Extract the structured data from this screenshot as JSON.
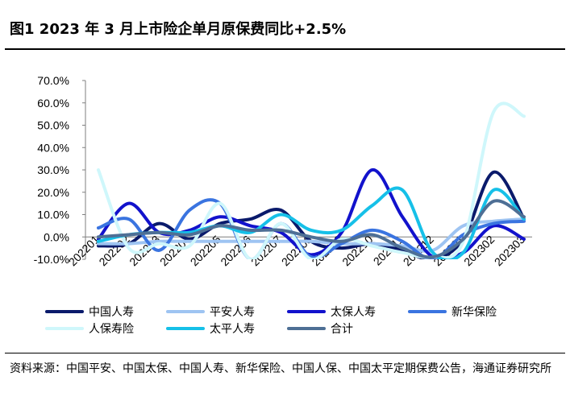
{
  "title": "图1   2023 年 3 月上市险企单月原保费同比+2.5%",
  "source": "资料来源：中国平安、中国太保、中国人寿、新华保险、中国人保、中国太平定期保费公告，海通证券研究所",
  "colors": {
    "中国人寿": "#0a1a6b",
    "平安人寿": "#9ec4f2",
    "太保人寿": "#1212cc",
    "新华保险": "#3a74e0",
    "人保寿险": "#cff7fb",
    "太平人寿": "#16c0e8",
    "合计": "#4e6f95"
  },
  "chart_data": {
    "type": "line",
    "categories": [
      "202201",
      "202202",
      "202203",
      "202204",
      "202205",
      "202206",
      "202207",
      "202208",
      "202209",
      "202210",
      "202211",
      "202212",
      "202301",
      "202302",
      "202303"
    ],
    "ylim": [
      -10,
      70
    ],
    "yticks": [
      "70.0%",
      "60.0%",
      "50.0%",
      "40.0%",
      "30.0%",
      "20.0%",
      "10.0%",
      "0.0%",
      "-10.0%"
    ],
    "ytick_values": [
      70,
      60,
      50,
      40,
      30,
      20,
      10,
      0,
      -10
    ],
    "series": [
      {
        "name": "中国人寿",
        "values": [
          -4,
          -3,
          6,
          -1,
          6,
          8,
          12,
          -2,
          -5,
          -3,
          -6,
          -10,
          -1,
          29,
          8
        ]
      },
      {
        "name": "平安人寿",
        "values": [
          -3,
          -3,
          -2,
          -2,
          -2,
          -2,
          -2,
          -2,
          -3,
          -3,
          -4,
          -6,
          5,
          7,
          8
        ]
      },
      {
        "name": "太保人寿",
        "values": [
          -1,
          15,
          2,
          3,
          9,
          5,
          2,
          -8,
          2,
          30,
          9,
          -9,
          -7,
          5,
          -1
        ]
      },
      {
        "name": "新华保险",
        "values": [
          4,
          8,
          -6,
          12,
          15,
          -10,
          6,
          -9,
          -3,
          3,
          -2,
          -10,
          1,
          6,
          7
        ]
      },
      {
        "name": "人保寿险",
        "values": [
          30,
          -5,
          -3,
          -4,
          15,
          -10,
          6,
          -10,
          -1,
          -4,
          -7,
          -9,
          -2,
          56,
          54
        ]
      },
      {
        "name": "太平人寿",
        "values": [
          -2,
          1,
          2,
          2,
          5,
          2,
          10,
          3,
          3,
          14,
          21,
          -7,
          -7,
          21,
          8
        ]
      },
      {
        "name": "合计",
        "values": [
          0,
          1,
          2,
          1,
          5,
          3,
          3,
          0,
          -2,
          1,
          -5,
          -9,
          -1,
          16,
          9
        ]
      }
    ],
    "legend": [
      [
        "中国人寿",
        "平安人寿",
        "太保人寿",
        "新华保险"
      ],
      [
        "人保寿险",
        "太平人寿",
        "合计"
      ]
    ]
  }
}
